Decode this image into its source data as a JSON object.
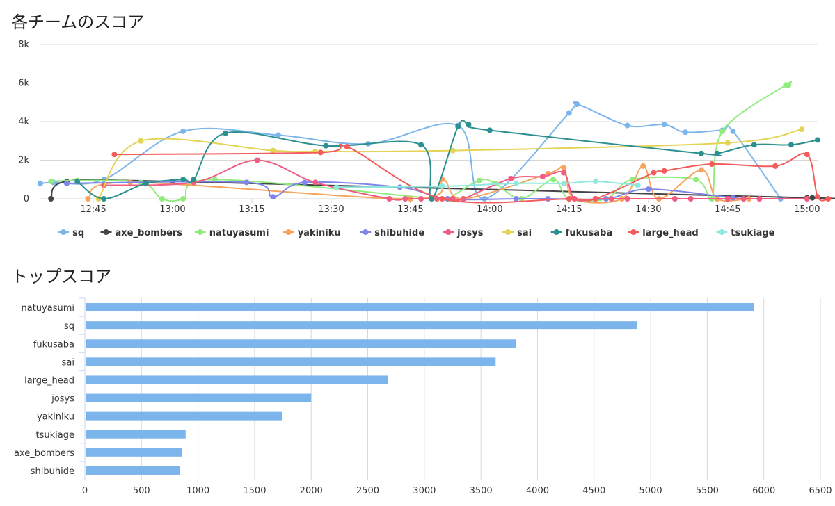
{
  "titles": {
    "score_history": "各チームのスコア",
    "top_score": "トップスコア"
  },
  "chart_data": [
    {
      "type": "line",
      "title": "各チームのスコア",
      "x_unit": "minutes since 12:00",
      "x_ticks": [
        {
          "value": 45,
          "label": "12:45"
        },
        {
          "value": 60,
          "label": "13:00"
        },
        {
          "value": 75,
          "label": "13:15"
        },
        {
          "value": 90,
          "label": "13:30"
        },
        {
          "value": 105,
          "label": "13:45"
        },
        {
          "value": 120,
          "label": "14:00"
        },
        {
          "value": 135,
          "label": "14:15"
        },
        {
          "value": 150,
          "label": "14:30"
        },
        {
          "value": 165,
          "label": "14:45"
        },
        {
          "value": 180,
          "label": "15:00"
        }
      ],
      "xlim": [
        35,
        182
      ],
      "ylim": [
        0,
        8000
      ],
      "y_ticks": [
        {
          "value": 0,
          "label": "0"
        },
        {
          "value": 2000,
          "label": "2k"
        },
        {
          "value": 4000,
          "label": "4k"
        },
        {
          "value": 6000,
          "label": "6k"
        },
        {
          "value": 8000,
          "label": "8k"
        }
      ],
      "grid": true,
      "legend": "bottom",
      "series": [
        {
          "name": "sq",
          "color": "#7cb5ec",
          "points": [
            [
              35,
              800
            ],
            [
              37.5,
              850
            ],
            [
              47,
              1000
            ],
            [
              62,
              3500
            ],
            [
              80,
              3300
            ],
            [
              97,
              2850
            ],
            [
              114,
              3800
            ],
            [
              119,
              0
            ],
            [
              135,
              4450
            ],
            [
              136.5,
              4900
            ],
            [
              146,
              3800
            ],
            [
              153,
              3850
            ],
            [
              157,
              3450
            ],
            [
              164,
              3550
            ],
            [
              166,
              3500
            ],
            [
              175,
              0
            ]
          ]
        },
        {
          "name": "axe_bombers",
          "color": "#434348",
          "points": [
            [
              37,
              0
            ],
            [
              40,
              900
            ],
            [
              60,
              900
            ],
            [
              180,
              50
            ],
            [
              181,
              50
            ]
          ]
        },
        {
          "name": "natuyasumi",
          "color": "#90ed7d",
          "points": [
            [
              37,
              900
            ],
            [
              42,
              950
            ],
            [
              54,
              850
            ],
            [
              58,
              0
            ],
            [
              62,
              0
            ],
            [
              68,
              1000
            ],
            [
              110,
              0
            ],
            [
              112,
              0
            ],
            [
              118,
              950
            ],
            [
              121,
              800
            ],
            [
              126,
              0
            ],
            [
              132,
              1000
            ],
            [
              135,
              0
            ],
            [
              142,
              0
            ],
            [
              147,
              1000
            ],
            [
              159,
              1000
            ],
            [
              162,
              0
            ],
            [
              164,
              3500
            ],
            [
              176,
              5900
            ],
            [
              176.5,
              5900
            ]
          ]
        },
        {
          "name": "yakiniku",
          "color": "#f7a35c",
          "points": [
            [
              44,
              0
            ],
            [
              52,
              850
            ],
            [
              105,
              0
            ],
            [
              111,
              1000
            ],
            [
              115,
              0
            ],
            [
              131,
              1300
            ],
            [
              134,
              1600
            ],
            [
              136,
              0
            ],
            [
              145,
              0
            ],
            [
              149,
              1700
            ],
            [
              152,
              0
            ],
            [
              160,
              1500
            ],
            [
              163,
              0
            ],
            [
              169,
              0
            ]
          ]
        },
        {
          "name": "shibuhide",
          "color": "#8085e9",
          "points": [
            [
              40,
              800
            ],
            [
              74,
              850
            ],
            [
              79,
              100
            ],
            [
              85,
              850
            ],
            [
              103,
              600
            ],
            [
              112,
              0
            ],
            [
              125,
              0
            ],
            [
              131,
              0
            ],
            [
              142,
              0
            ],
            [
              150,
              500
            ],
            [
              166,
              50
            ],
            [
              168,
              0
            ]
          ]
        },
        {
          "name": "josys",
          "color": "#f15c80",
          "points": [
            [
              47,
              700
            ],
            [
              64,
              850
            ],
            [
              76,
              2000
            ],
            [
              87,
              850
            ],
            [
              101,
              0
            ],
            [
              104,
              0
            ],
            [
              107,
              0
            ],
            [
              110,
              0
            ],
            [
              113,
              0
            ],
            [
              115,
              0
            ],
            [
              124,
              1050
            ],
            [
              130,
              1150
            ],
            [
              134,
              1350
            ],
            [
              136,
              0
            ],
            [
              140,
              0
            ],
            [
              143,
              0
            ],
            [
              146,
              0
            ],
            [
              155,
              0
            ],
            [
              158,
              0
            ],
            [
              165,
              0
            ],
            [
              168,
              0
            ],
            [
              171,
              0
            ],
            [
              180,
              0
            ]
          ]
        },
        {
          "name": "sai",
          "color": "#e4d354",
          "points": [
            [
              46,
              0
            ],
            [
              54,
              3000
            ],
            [
              79,
              2500
            ],
            [
              87,
              2450
            ],
            [
              113,
              2500
            ],
            [
              165,
              2900
            ],
            [
              179,
              3600
            ]
          ]
        },
        {
          "name": "fukusaba",
          "color": "#2b908f",
          "points": [
            [
              42,
              900
            ],
            [
              47,
              0
            ],
            [
              55,
              800
            ],
            [
              62,
              1000
            ],
            [
              64,
              1000
            ],
            [
              70,
              3400
            ],
            [
              89,
              2750
            ],
            [
              107,
              2800
            ],
            [
              109,
              0
            ],
            [
              114,
              3750
            ],
            [
              116,
              3850
            ],
            [
              120,
              3550
            ],
            [
              160,
              2350
            ],
            [
              163,
              2350
            ],
            [
              170,
              2800
            ],
            [
              177,
              2800
            ],
            [
              182,
              3050
            ]
          ]
        },
        {
          "name": "large_head",
          "color": "#f45b5b",
          "points": [
            [
              49,
              2300
            ],
            [
              88,
              2400
            ],
            [
              93,
              2700
            ],
            [
              111,
              0
            ],
            [
              135,
              0
            ],
            [
              140,
              0
            ],
            [
              151,
              1350
            ],
            [
              153,
              1450
            ],
            [
              162,
              1800
            ],
            [
              174,
              1700
            ],
            [
              180,
              2300
            ],
            [
              182,
              100
            ],
            [
              184,
              0
            ]
          ]
        },
        {
          "name": "tsukiage",
          "color": "#91e8e1",
          "points": [
            [
              91,
              600
            ],
            [
              111,
              650
            ],
            [
              125,
              800
            ],
            [
              134,
              800
            ],
            [
              140,
              900
            ],
            [
              148,
              700
            ]
          ]
        }
      ]
    },
    {
      "type": "bar",
      "orientation": "horizontal",
      "title": "トップスコア",
      "categories": [
        "natuyasumi",
        "sq",
        "fukusaba",
        "sai",
        "large_head",
        "josys",
        "yakiniku",
        "tsukiage",
        "axe_bombers",
        "shibuhide"
      ],
      "values": [
        5910,
        4880,
        3810,
        3630,
        2680,
        2000,
        1740,
        890,
        860,
        840
      ],
      "xlim": [
        0,
        6500
      ],
      "x_ticks": [
        "0",
        "500",
        "1000",
        "1500",
        "2000",
        "2500",
        "3000",
        "3500",
        "4000",
        "4500",
        "5000",
        "5500",
        "6000",
        "6500"
      ],
      "bar_color": "#7cb5ec",
      "grid": true
    }
  ]
}
